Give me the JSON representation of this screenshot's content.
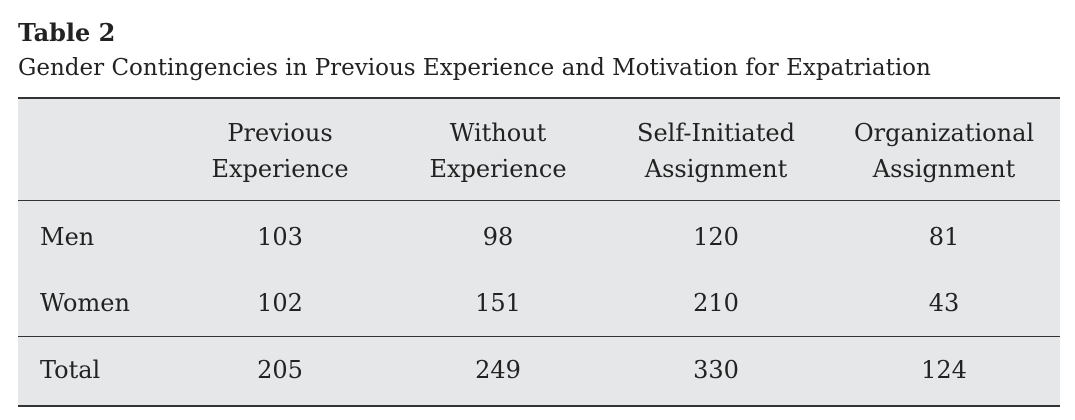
{
  "table": {
    "label": "Table 2",
    "caption": "Gender Contingencies in Previous Experience and Motivation for Expatriation",
    "columns": [
      [
        "Previous",
        "Experience"
      ],
      [
        "Without",
        "Experience"
      ],
      [
        "Self-Initiated",
        "Assignment"
      ],
      [
        "Organizational",
        "Assignment"
      ]
    ],
    "rows": [
      [
        "Men",
        103,
        98,
        120,
        81
      ],
      [
        "Women",
        102,
        151,
        210,
        43
      ]
    ],
    "total": [
      "Total",
      205,
      249,
      330,
      124
    ]
  }
}
